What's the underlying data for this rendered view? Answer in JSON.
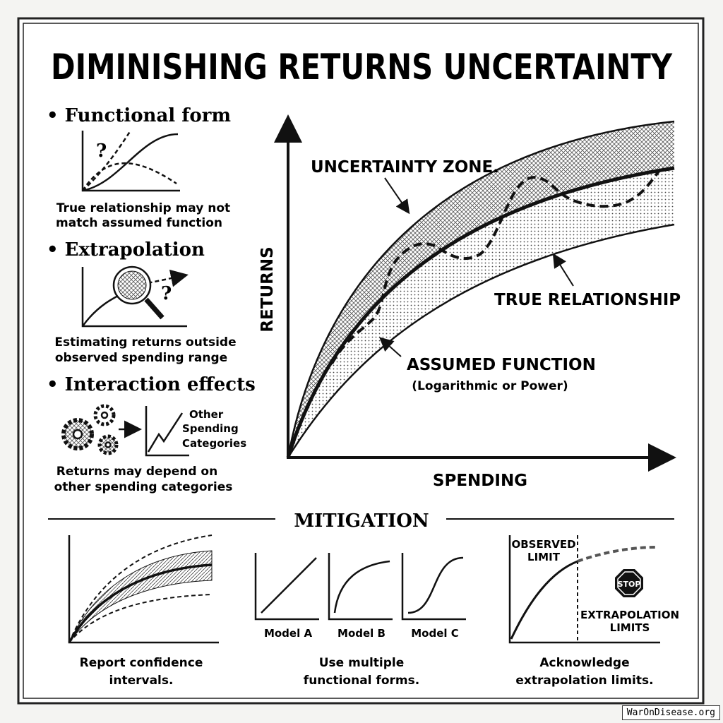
{
  "title": "DIMINISHING RETURNS UNCERTAINTY",
  "left": {
    "items": [
      {
        "heading": "• Functional form",
        "caption1": "True relationship may not",
        "caption2": "match assumed function",
        "mark": "?"
      },
      {
        "heading": "• Extrapolation",
        "caption1": "Estimating returns outside",
        "caption2": "observed spending range",
        "mark": "?"
      },
      {
        "heading": "• Interaction effects",
        "caption1": "Returns may depend on",
        "caption2": "other spending categories",
        "label1": "Other",
        "label2": "Spending",
        "label3": "Categories"
      }
    ]
  },
  "chart": {
    "y_label": "RETURNS",
    "x_label": "SPENDING",
    "uncertainty_zone": "UNCERTAINTY ZONE.",
    "true_relationship": "TRUE RELATIONSHIP",
    "assumed_function": "ASSUMED FUNCTION",
    "assumed_function_sub": "(Logarithmic or Power)"
  },
  "mitigation": {
    "heading": "MITIGATION",
    "items": [
      {
        "caption1": "Report confidence",
        "caption2": "intervals."
      },
      {
        "caption1": "Use multiple",
        "caption2": "functional forms.",
        "models": [
          "Model A",
          "Model B",
          "Model C"
        ]
      },
      {
        "caption1": "Acknowledge",
        "caption2": "extrapolation limits.",
        "observed1": "OBSERVED",
        "observed2": "LIMIT",
        "stop": "STOP",
        "extrap1": "EXTRAPOLATION",
        "extrap2": "LIMITS"
      }
    ]
  },
  "footer": "WarOnDisease.org"
}
